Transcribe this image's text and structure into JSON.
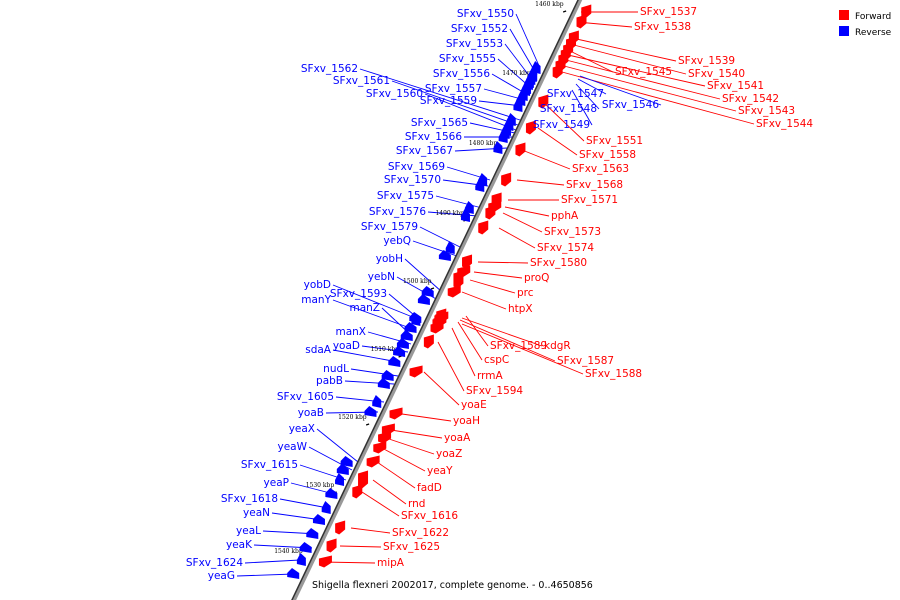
{
  "legend": {
    "forward": {
      "label": "Forward",
      "color": "#ff0000"
    },
    "reverse": {
      "label": "Reverse",
      "color": "#0000ff"
    }
  },
  "caption": "Shigella flexneri 2002017, complete genome. - 0..4650856",
  "backbone": {
    "start_kbp": 1460,
    "end_kbp": 1547
  },
  "ticks": [
    "1460 kbp",
    "1470 kbp",
    "1480 kbp",
    "1490 kbp",
    "1500 kbp",
    "1510 kbp",
    "1520 kbp",
    "1530 kbp",
    "1540 kbp"
  ],
  "forward_genes": [
    "SFxv_1537",
    "SFxv_1538",
    "SFxv_1539",
    "SFxv_1540",
    "SFxv_1545",
    "SFxv_1541",
    "SFxv_1542",
    "SFxv_1543",
    "SFxv_1544",
    "SFxv_1551",
    "SFxv_1558",
    "SFxv_1563",
    "SFxv_1568",
    "SFxv_1571",
    "pphA",
    "SFxv_1573",
    "SFxv_1574",
    "SFxv_1580",
    "proQ",
    "prc",
    "htpX",
    "SFxv_1589",
    "kdgR",
    "cspC",
    "SFxv_1587",
    "SFxv_1588",
    "rrmA",
    "SFxv_1594",
    "yoaE",
    "yoaH",
    "yoaA",
    "yoaZ",
    "yeaY",
    "fadD",
    "rnd",
    "SFxv_1616",
    "SFxv_1622",
    "SFxv_1625",
    "mipA"
  ],
  "reverse_genes": [
    "SFxv_1550",
    "SFxv_1552",
    "SFxv_1553",
    "SFxv_1555",
    "SFxv_1562",
    "SFxv_1556",
    "SFxv_1561",
    "SFxv_1557",
    "SFxv_1560",
    "SFxv_1559",
    "SFxv_1547",
    "SFxv_1548",
    "SFxv_1546",
    "SFxv_1549",
    "SFxv_1565",
    "SFxv_1566",
    "SFxv_1567",
    "SFxv_1569",
    "SFxv_1570",
    "SFxv_1575",
    "SFxv_1576",
    "SFxv_1579",
    "yebQ",
    "yobH",
    "yebN",
    "yobD",
    "SFxv_1593",
    "manY",
    "manZ",
    "manX",
    "yoaD",
    "sdaA",
    "nudL",
    "pabB",
    "SFxv_1605",
    "yoaB",
    "yeaX",
    "yeaW",
    "SFxv_1615",
    "yeaP",
    "SFxv_1618",
    "yeaN",
    "yeaL",
    "yeaK",
    "SFxv_1624",
    "yeaG"
  ]
}
